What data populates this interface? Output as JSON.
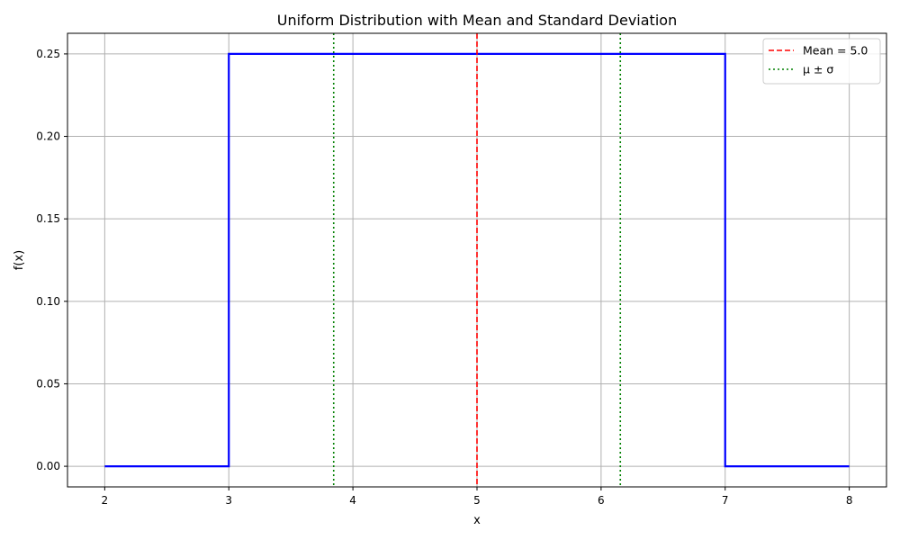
{
  "chart_data": {
    "type": "line",
    "title": "Uniform Distribution with Mean and Standard Deviation",
    "xlabel": "x",
    "ylabel": "f(x)",
    "xlim": [
      1.7,
      8.3
    ],
    "ylim": [
      -0.0125,
      0.2625
    ],
    "xticks": [
      2,
      3,
      4,
      5,
      6,
      7,
      8
    ],
    "xtick_labels": [
      "2",
      "3",
      "4",
      "5",
      "6",
      "7",
      "8"
    ],
    "yticks": [
      0.0,
      0.05,
      0.1,
      0.15,
      0.2,
      0.25
    ],
    "ytick_labels": [
      "0.00",
      "0.05",
      "0.10",
      "0.15",
      "0.20",
      "0.25"
    ],
    "grid": true,
    "legend_position": "top-right",
    "series": [
      {
        "name": "",
        "color": "#0000ff",
        "style": "solid",
        "x": [
          2,
          3,
          3,
          7,
          7,
          8
        ],
        "y": [
          0,
          0,
          0.25,
          0.25,
          0,
          0
        ]
      }
    ],
    "vlines": [
      {
        "name": "Mean = 5.0",
        "legend": true,
        "x": 5.0,
        "color": "#ff0000",
        "style": "dashed"
      },
      {
        "name": "μ ± σ",
        "legend": true,
        "x": 3.845,
        "color": "#008000",
        "style": "dotted"
      },
      {
        "name": "μ ± σ",
        "legend": false,
        "x": 6.155,
        "color": "#008000",
        "style": "dotted"
      }
    ]
  }
}
